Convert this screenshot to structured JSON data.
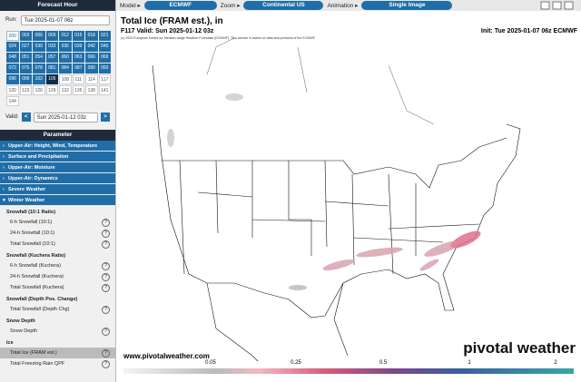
{
  "sidebar": {
    "forecast_header": "Forecast Hour",
    "run_label": "Run:",
    "run_value": "Tue 2025-01-07 06z",
    "hours": [
      "000",
      "003",
      "006",
      "009",
      "012",
      "015",
      "018",
      "021",
      "024",
      "027",
      "030",
      "033",
      "036",
      "039",
      "042",
      "045",
      "048",
      "051",
      "054",
      "057",
      "060",
      "063",
      "066",
      "069",
      "072",
      "075",
      "078",
      "081",
      "084",
      "087",
      "090",
      "093",
      "096",
      "099",
      "102",
      "105",
      "108",
      "111",
      "114",
      "117",
      "120",
      "123",
      "126",
      "129",
      "132",
      "135",
      "138",
      "141",
      "144"
    ],
    "valid_label": "Valid:",
    "valid_prev": "<",
    "valid_value": "Sun 2025-01-12 03z",
    "valid_next": ">",
    "parameter_header": "Parameter",
    "categories": [
      "Upper-Air: Height, Wind, Temperature",
      "Surface and Precipitation",
      "Upper-Air: Moisture",
      "Upper-Air: Dynamics",
      "Severe Weather",
      "Winter Weather"
    ],
    "sections": [
      {
        "title": "Snowfall (10:1 Ratio)",
        "items": [
          "6-h Snowfall (10:1)",
          "24-h Snowfall (10:1)",
          "Total Snowfall (10:1)"
        ]
      },
      {
        "title": "Snowfall (Kuchera Ratio)",
        "items": [
          "6-h Snowfall (Kuchera)",
          "24-h Snowfall (Kuchera)",
          "Total Snowfall (Kuchera)"
        ]
      },
      {
        "title": "Snowfall (Depth Pos. Change)",
        "items": [
          "Total Snowfall (Depth Chg)"
        ]
      },
      {
        "title": "Snow Depth",
        "items": [
          "Snow Depth"
        ]
      },
      {
        "title": "Ice",
        "items": [
          "Total Ice (FRAM est.)",
          "Total Freezing Rain QPF"
        ]
      }
    ]
  },
  "toolbar": {
    "model_label": "Model ▸",
    "model": "ECMWF",
    "zoom_label": "Zoom ▸",
    "zoom": "Continental US",
    "animation_label": "Animation ▸",
    "animation": "Single Image"
  },
  "map": {
    "title": "Total Ice (FRAM est.), in",
    "valid": "F117 Valid: Sun 2025-01-12 03z",
    "init": "Init: Tue 2025-01-07 06z ECMWF",
    "credit": "(c) 2025 European Centre for Medium-range Weather Forecasts (ECMWF). This service is based on data and products of the ECMWF.",
    "site": "www.pivotalweather.com",
    "brand": "pivotal weather",
    "colorbar_labels": [
      0.05,
      0.25,
      0.5,
      1,
      2
    ]
  }
}
